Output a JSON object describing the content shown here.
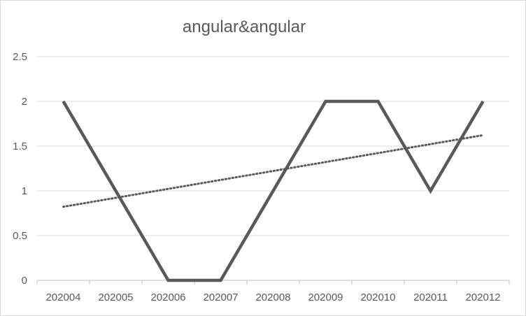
{
  "chart_data": {
    "type": "line",
    "title": "angular&angular",
    "xlabel": "",
    "ylabel": "",
    "categories": [
      "202004",
      "202005",
      "202006",
      "202007",
      "202008",
      "202009",
      "202010",
      "202011",
      "202012"
    ],
    "series": [
      {
        "values": [
          2,
          1,
          0,
          0,
          1,
          2,
          2,
          1,
          2
        ]
      }
    ],
    "trendline": {
      "type": "linear",
      "style": "dotted"
    },
    "ylim": [
      0,
      2.5
    ],
    "yticks": [
      "0",
      "0.5",
      "1",
      "1.5",
      "2",
      "2.5"
    ],
    "grid": true,
    "legend": "none",
    "colors": {
      "series": "#595959",
      "trendline": "#595959",
      "grid": "#d9d9d9",
      "axis": "#bfbfbf",
      "text": "#595959"
    }
  }
}
